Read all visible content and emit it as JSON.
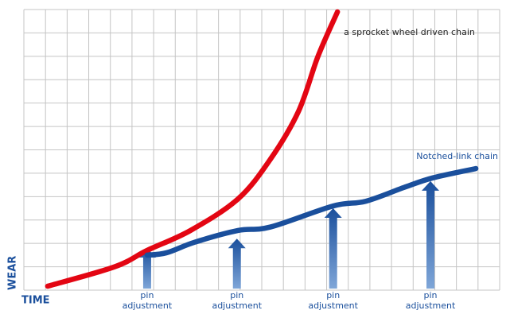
{
  "chart_data": {
    "type": "line",
    "xlabel": "TIME",
    "ylabel": "WEAR",
    "xlim": [
      0,
      22
    ],
    "ylim": [
      0,
      12
    ],
    "xticks": [
      0,
      1,
      2,
      3,
      4,
      5,
      6,
      7,
      8,
      9,
      10,
      11,
      12,
      13,
      14,
      15,
      16,
      17,
      18,
      19,
      20,
      21,
      22
    ],
    "yticks": [
      0,
      1,
      2,
      3,
      4,
      5,
      6,
      7,
      8,
      9,
      10,
      11,
      12
    ],
    "grid": true,
    "tick_labels": false,
    "series": [
      {
        "name": "a sprocket wheel driven chain",
        "color": "#e30613",
        "x": [
          1.1,
          4.2,
          5.7,
          7.7,
          9.9,
          11.4,
          12.7,
          13.6,
          14.5
        ],
        "values": [
          0.17,
          1.0,
          1.7,
          2.55,
          3.9,
          5.6,
          7.65,
          10.0,
          11.9
        ]
      },
      {
        "name": "Notched-link chain",
        "color": "#1a4f9c",
        "x": [
          5.7,
          6.6,
          7.9,
          9.9,
          11.4,
          14.3,
          15.8,
          17.6,
          18.9,
          20.9
        ],
        "values": [
          1.5,
          1.6,
          2.05,
          2.55,
          2.7,
          3.6,
          3.8,
          4.4,
          4.8,
          5.2
        ]
      }
    ],
    "annotations": [
      {
        "lines": [
          "pin",
          "adjustment"
        ],
        "x": 5.7,
        "y": 1.8
      },
      {
        "lines": [
          "pin",
          "adjustment"
        ],
        "x": 9.85,
        "y": 2.2
      },
      {
        "lines": [
          "pin",
          "adjustment"
        ],
        "x": 14.3,
        "y": 3.5
      },
      {
        "lines": [
          "pin",
          "adjustment"
        ],
        "x": 18.8,
        "y": 4.66
      }
    ]
  }
}
